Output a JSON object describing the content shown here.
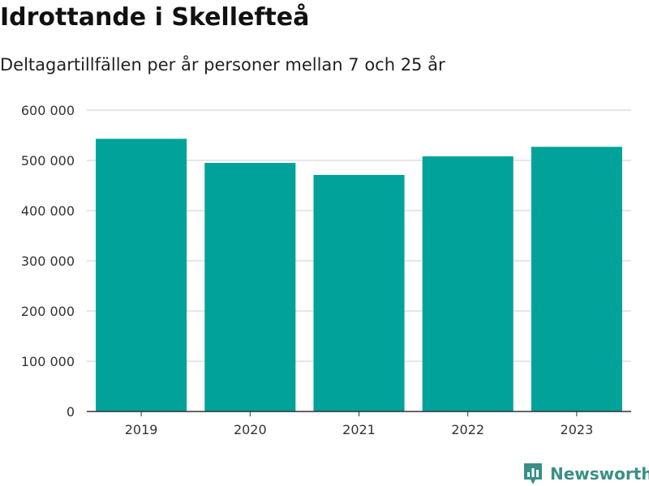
{
  "brand": {
    "name": "Newsworthy",
    "icon": "newsworthy-logo-icon",
    "color": "#3a8f86"
  },
  "chart_data": {
    "type": "bar",
    "title": "Idrottande i Skellefteå",
    "subtitle": "Deltagartillfällen per år personer mellan 7 och 25 år",
    "xlabel": "",
    "ylabel": "",
    "categories": [
      "2019",
      "2020",
      "2021",
      "2022",
      "2023"
    ],
    "values": [
      543000,
      495000,
      471000,
      508000,
      527000
    ],
    "ylim": [
      0,
      600000
    ],
    "yticks": [
      0,
      100000,
      200000,
      300000,
      400000,
      500000,
      600000
    ],
    "ytick_labels": [
      "0",
      "100 000",
      "200 000",
      "300 000",
      "400 000",
      "500 000",
      "600 000"
    ],
    "bar_color": "#00a29a",
    "grid": true,
    "legend": "none"
  }
}
